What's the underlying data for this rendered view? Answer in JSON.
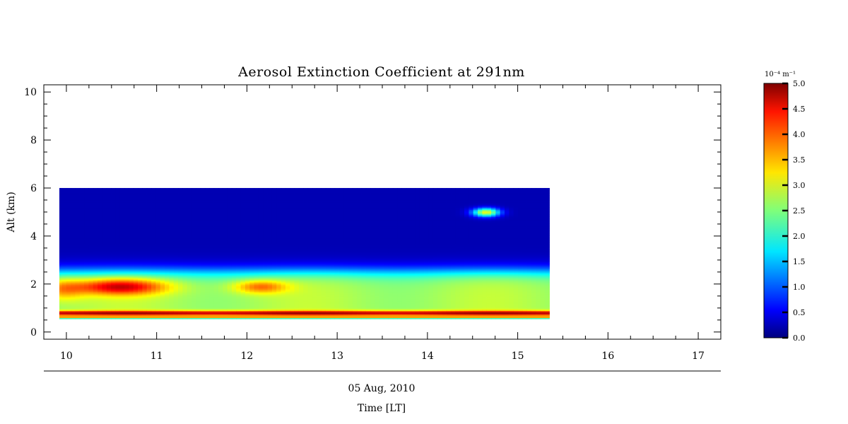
{
  "chart_data": {
    "type": "heatmap",
    "title": "Aerosol Extinction Coefficient at 291nm",
    "xlabel": "Time [LT]",
    "date_label": "05 Aug, 2010",
    "ylabel": "Alt (km)",
    "xlim": [
      9.75,
      17.25
    ],
    "ylim": [
      -0.3,
      10.3
    ],
    "x_ticks": [
      10,
      11,
      12,
      13,
      14,
      15,
      16,
      17
    ],
    "y_ticks": [
      0,
      2,
      4,
      6,
      8,
      10
    ],
    "data_extent": {
      "x": [
        9.9,
        15.35
      ],
      "y": [
        0.55,
        6.0
      ]
    },
    "colorbar": {
      "unit": "10⁻⁴ m⁻¹",
      "range": [
        0.0,
        5.0
      ],
      "ticks": [
        "0.0",
        "0.5",
        "1.0",
        "1.5",
        "2.0",
        "2.5",
        "3.0",
        "3.5",
        "4.0",
        "4.5",
        "5.0"
      ],
      "colormap": "jet"
    },
    "features": [
      {
        "description": "background free troposphere",
        "alt_range": [
          3.0,
          6.0
        ],
        "value": 0.3
      },
      {
        "description": "strong near-surface layer",
        "alt": 0.8,
        "value": 4.6
      },
      {
        "description": "elevated layer maximum",
        "time": 10.6,
        "alt": 1.9,
        "value": 4.7
      },
      {
        "description": "secondary maximum",
        "time": 12.1,
        "alt": 1.9,
        "value": 3.8
      },
      {
        "description": "isolated plume",
        "time": 14.65,
        "alt": 5.0,
        "value": 3.0
      }
    ]
  }
}
